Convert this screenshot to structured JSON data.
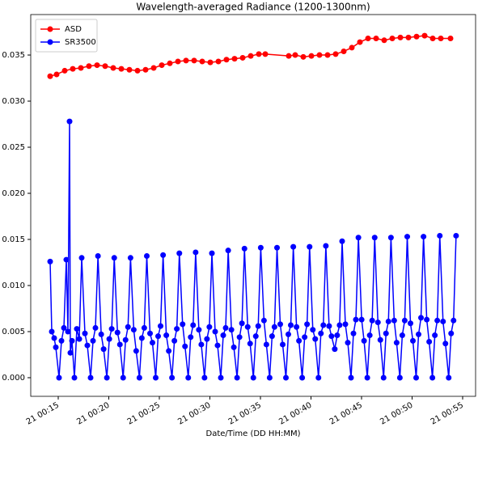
{
  "chart_data": {
    "type": "line",
    "title": "Wavelength-averaged Radiance (1200-1300nm)",
    "xlabel": "Date/Time (DD HH:MM)",
    "xlim": [
      12.28,
      56.28
    ],
    "xticks": [
      {
        "value": 15,
        "label": "21 00:15"
      },
      {
        "value": 20,
        "label": "21 00:20"
      },
      {
        "value": 25,
        "label": "21 00:25"
      },
      {
        "value": 30,
        "label": "21 00:30"
      },
      {
        "value": 35,
        "label": "21 00:35"
      },
      {
        "value": 40,
        "label": "21 00:40"
      },
      {
        "value": 45,
        "label": "21 00:45"
      },
      {
        "value": 50,
        "label": "21 00:50"
      },
      {
        "value": 55,
        "label": "21 00:55"
      }
    ],
    "ylim": [
      -0.00202,
      0.03939
    ],
    "yticks": [
      {
        "value": 0,
        "label": "0.000"
      },
      0.005,
      {
        "value": 0.01,
        "label": "0.010"
      },
      0.015,
      {
        "value": 0.02,
        "label": "0.020"
      },
      0.025,
      {
        "value": 0.03,
        "label": "0.030"
      },
      0.035
    ],
    "legend": "upper left",
    "grid": false,
    "series": [
      {
        "name": "ASD",
        "color": "#ff0000",
        "x": [
          14.2,
          14.84,
          15.64,
          16.44,
          17.24,
          18.04,
          18.84,
          19.64,
          20.44,
          21.24,
          22.04,
          22.84,
          23.64,
          24.44,
          25.24,
          26.04,
          26.84,
          27.64,
          28.44,
          29.24,
          30.04,
          30.84,
          31.64,
          32.44,
          33.24,
          34.04,
          34.84,
          35.48,
          37.8,
          38.44,
          39.24,
          40.04,
          40.84,
          41.64,
          42.44,
          43.24,
          44.04,
          44.84,
          45.64,
          46.44,
          47.24,
          48.04,
          48.84,
          49.64,
          50.44,
          51.24,
          52.04,
          52.84,
          53.8
        ],
        "values": [
          0.0327,
          0.0329,
          0.0333,
          0.0335,
          0.0336,
          0.0338,
          0.0339,
          0.0338,
          0.0336,
          0.0335,
          0.0334,
          0.0333,
          0.0334,
          0.0336,
          0.0339,
          0.0341,
          0.0343,
          0.0344,
          0.0344,
          0.0343,
          0.0342,
          0.0343,
          0.0345,
          0.0346,
          0.0347,
          0.0349,
          0.0351,
          0.0351,
          0.0349,
          0.035,
          0.0348,
          0.0349,
          0.035,
          0.035,
          0.0351,
          0.0354,
          0.0358,
          0.0364,
          0.0368,
          0.0368,
          0.0366,
          0.0368,
          0.0369,
          0.0369,
          0.037,
          0.0371,
          0.0368,
          0.0368,
          0.0368
        ]
      },
      {
        "name": "SR3500",
        "color": "#0000ff",
        "x": [
          14.2,
          14.36,
          14.6,
          14.76,
          15.08,
          15.32,
          15.56,
          15.8,
          15.96,
          16.12,
          16.2,
          16.36,
          16.6,
          16.84,
          17.08,
          17.32,
          17.64,
          17.88,
          18.2,
          18.44,
          18.68,
          18.93,
          19.25,
          19.49,
          19.81,
          20.05,
          20.29,
          20.54,
          20.86,
          21.1,
          21.42,
          21.66,
          21.9,
          22.15,
          22.47,
          22.71,
          23.03,
          23.27,
          23.51,
          23.76,
          24.08,
          24.32,
          24.64,
          24.88,
          25.12,
          25.37,
          25.69,
          25.93,
          26.25,
          26.49,
          26.73,
          26.98,
          27.3,
          27.54,
          27.86,
          28.1,
          28.34,
          28.59,
          28.91,
          29.15,
          29.47,
          29.71,
          29.95,
          30.2,
          30.52,
          30.76,
          31.08,
          31.32,
          31.56,
          31.81,
          32.13,
          32.37,
          32.69,
          32.93,
          33.17,
          33.42,
          33.74,
          33.98,
          34.3,
          34.54,
          34.78,
          35.03,
          35.35,
          35.59,
          35.91,
          36.15,
          36.39,
          36.64,
          36.96,
          37.2,
          37.52,
          37.76,
          38.0,
          38.25,
          38.57,
          38.81,
          39.13,
          39.37,
          39.61,
          39.86,
          40.18,
          40.42,
          40.74,
          40.98,
          41.22,
          41.47,
          41.79,
          42.03,
          42.35,
          42.59,
          42.83,
          43.08,
          43.4,
          43.64,
          43.96,
          44.2,
          44.44,
          44.69,
          45.01,
          45.25,
          45.57,
          45.81,
          46.05,
          46.3,
          46.62,
          46.86,
          47.18,
          47.42,
          47.66,
          47.91,
          48.23,
          48.47,
          48.79,
          49.03,
          49.27,
          49.52,
          49.84,
          50.08,
          50.4,
          50.64,
          50.88,
          51.13,
          51.45,
          51.69,
          52.01,
          52.25,
          52.49,
          52.74,
          53.06,
          53.3,
          53.62,
          53.86,
          54.1,
          54.35
        ],
        "values": [
          0.0126,
          0.005,
          0.0043,
          0.0033,
          0,
          0.004,
          0.0054,
          0.0128,
          0.005,
          0.0278,
          0.0027,
          0.004,
          0,
          0.0053,
          0.0042,
          0.013,
          0.0048,
          0.0035,
          0,
          0.004,
          0.0054,
          0.0132,
          0.0047,
          0.0031,
          0,
          0.0042,
          0.0053,
          0.013,
          0.0049,
          0.0036,
          0,
          0.0041,
          0.0055,
          0.013,
          0.0052,
          0.0029,
          0,
          0.0043,
          0.0054,
          0.0132,
          0.0048,
          0.0038,
          0,
          0.0045,
          0.0056,
          0.0133,
          0.0046,
          0.0029,
          0,
          0.004,
          0.0053,
          0.0135,
          0.0058,
          0.0034,
          0,
          0.0044,
          0.0057,
          0.0136,
          0.0052,
          0.0036,
          0,
          0.0042,
          0.0055,
          0.0135,
          0.005,
          0.0035,
          0,
          0.0046,
          0.0054,
          0.0138,
          0.0052,
          0.0033,
          0,
          0.0044,
          0.0059,
          0.014,
          0.0055,
          0.0037,
          0,
          0.0045,
          0.0056,
          0.0141,
          0.0062,
          0.0036,
          0,
          0.0045,
          0.0055,
          0.0141,
          0.0058,
          0.0036,
          0,
          0.0047,
          0.0057,
          0.0142,
          0.0055,
          0.004,
          0,
          0.0044,
          0.0058,
          0.0142,
          0.0052,
          0.0042,
          0,
          0.0048,
          0.0057,
          0.0143,
          0.0056,
          0.0045,
          0.0031,
          0.0046,
          0.0057,
          0.0148,
          0.0058,
          0.0038,
          0,
          0.0048,
          0.0063,
          0.0152,
          0.0063,
          0.004,
          0,
          0.0046,
          0.0062,
          0.0152,
          0.006,
          0.0041,
          0,
          0.0048,
          0.0061,
          0.0152,
          0.0062,
          0.0038,
          0,
          0.0046,
          0.0062,
          0.0153,
          0.0059,
          0.004,
          0,
          0.0047,
          0.0065,
          0.0153,
          0.0063,
          0.0039,
          0,
          0.0046,
          0.0062,
          0.0154,
          0.0061,
          0.0037,
          0,
          0.0048,
          0.0062,
          0.0154
        ]
      }
    ]
  }
}
